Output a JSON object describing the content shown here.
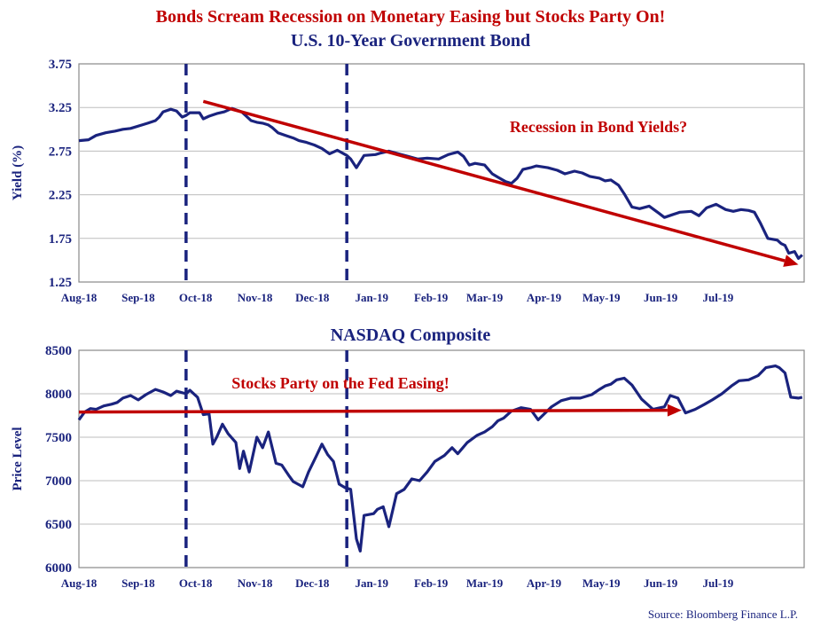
{
  "figure": {
    "title": "Bonds Scream Recession on Monetary Easing but Stocks Party On!",
    "source": "Source: Bloomberg Finance L.P.",
    "colors": {
      "title": "#c00000",
      "text": "#1a237e",
      "series": "#1a237e",
      "trend": "#c00000",
      "grid": "#bdbdbd"
    }
  },
  "chart_data": [
    {
      "type": "line",
      "title": "U.S. 10-Year Government Bond",
      "xlabel": "",
      "ylabel": "Yield (%)",
      "ylim": [
        1.25,
        3.75
      ],
      "yticks": [
        "3.75",
        "3.25",
        "2.75",
        "2.25",
        "1.75",
        "1.25"
      ],
      "ytick_values": [
        3.75,
        3.25,
        2.75,
        2.25,
        1.75,
        1.25
      ],
      "xlim": [
        "2018-08-01",
        "2019-08-15"
      ],
      "xticks": [
        "Aug-18",
        "Sep-18",
        "Oct-18",
        "Nov-18",
        "Dec-18",
        "Jan-19",
        "Feb-19",
        "Mar-19",
        "Apr-19",
        "May-19",
        "Jun-19",
        "Jul-19"
      ],
      "xtick_dates": [
        "2018-08-01",
        "2018-09-01",
        "2018-10-01",
        "2018-11-01",
        "2018-12-01",
        "2019-01-01",
        "2019-02-01",
        "2019-03-01",
        "2019-04-01",
        "2019-05-01",
        "2019-06-01",
        "2019-07-01"
      ],
      "grid": "horizontal",
      "vlines": [
        "2018-09-26",
        "2018-12-19"
      ],
      "trend_arrow": {
        "from": [
          "2018-10-05",
          3.32
        ],
        "to": [
          "2019-08-12",
          1.45
        ]
      },
      "annotation": "Recession in Bond Yields?",
      "x": [
        "2018-08-01",
        "2018-08-06",
        "2018-08-10",
        "2018-08-15",
        "2018-08-20",
        "2018-08-24",
        "2018-08-28",
        "2018-09-03",
        "2018-09-06",
        "2018-09-10",
        "2018-09-12",
        "2018-09-14",
        "2018-09-18",
        "2018-09-21",
        "2018-09-24",
        "2018-09-26",
        "2018-09-28",
        "2018-10-03",
        "2018-10-05",
        "2018-10-08",
        "2018-10-12",
        "2018-10-16",
        "2018-10-20",
        "2018-10-25",
        "2018-10-30",
        "2018-11-02",
        "2018-11-05",
        "2018-11-08",
        "2018-11-10",
        "2018-11-13",
        "2018-11-17",
        "2018-11-21",
        "2018-11-24",
        "2018-11-28",
        "2018-12-02",
        "2018-12-06",
        "2018-12-10",
        "2018-12-14",
        "2018-12-19",
        "2018-12-21",
        "2018-12-24",
        "2018-12-28",
        "2019-01-03",
        "2019-01-06",
        "2019-01-10",
        "2019-01-15",
        "2019-01-20",
        "2019-01-25",
        "2019-01-30",
        "2019-02-05",
        "2019-02-10",
        "2019-02-15",
        "2019-02-18",
        "2019-02-21",
        "2019-02-24",
        "2019-03-01",
        "2019-03-05",
        "2019-03-08",
        "2019-03-12",
        "2019-03-15",
        "2019-03-18",
        "2019-03-21",
        "2019-03-25",
        "2019-03-28",
        "2019-04-03",
        "2019-04-08",
        "2019-04-12",
        "2019-04-17",
        "2019-04-21",
        "2019-04-25",
        "2019-04-30",
        "2019-05-03",
        "2019-05-06",
        "2019-05-10",
        "2019-05-13",
        "2019-05-17",
        "2019-05-21",
        "2019-05-26",
        "2019-05-31",
        "2019-06-03",
        "2019-06-07",
        "2019-06-11",
        "2019-06-17",
        "2019-06-21",
        "2019-06-25",
        "2019-06-30",
        "2019-07-05",
        "2019-07-09",
        "2019-07-13",
        "2019-07-17",
        "2019-07-20",
        "2019-07-23",
        "2019-07-27",
        "2019-08-01",
        "2019-08-03",
        "2019-08-05",
        "2019-08-07",
        "2019-08-10",
        "2019-08-12",
        "2019-08-14"
      ],
      "series": [
        {
          "values": [
            2.87,
            2.88,
            2.93,
            2.96,
            2.98,
            3.0,
            3.01,
            3.05,
            3.07,
            3.1,
            3.14,
            3.2,
            3.23,
            3.21,
            3.14,
            3.16,
            3.19,
            3.19,
            3.12,
            3.15,
            3.18,
            3.2,
            3.24,
            3.2,
            3.1,
            3.08,
            3.07,
            3.05,
            3.02,
            2.96,
            2.93,
            2.9,
            2.87,
            2.85,
            2.82,
            2.78,
            2.72,
            2.76,
            2.7,
            2.66,
            2.56,
            2.7,
            2.71,
            2.73,
            2.75,
            2.72,
            2.69,
            2.66,
            2.67,
            2.66,
            2.71,
            2.74,
            2.69,
            2.59,
            2.61,
            2.59,
            2.49,
            2.45,
            2.4,
            2.38,
            2.44,
            2.54,
            2.56,
            2.58,
            2.56,
            2.53,
            2.49,
            2.52,
            2.5,
            2.46,
            2.44,
            2.41,
            2.42,
            2.36,
            2.26,
            2.11,
            2.09,
            2.12,
            2.04,
            1.99,
            2.02,
            2.05,
            2.06,
            2.01,
            2.1,
            2.14,
            2.08,
            2.06,
            2.08,
            2.07,
            2.05,
            1.93,
            1.75,
            1.73,
            1.69,
            1.67,
            1.58,
            1.6,
            1.52,
            1.56
          ]
        }
      ]
    },
    {
      "type": "line",
      "title": "NASDAQ Composite",
      "xlabel": "",
      "ylabel": "Price Level",
      "ylim": [
        6000,
        8500
      ],
      "yticks": [
        "8500",
        "8000",
        "7500",
        "7000",
        "6500",
        "6000"
      ],
      "ytick_values": [
        8500,
        8000,
        7500,
        7000,
        6500,
        6000
      ],
      "xlim": [
        "2018-08-01",
        "2019-08-15"
      ],
      "xticks": [
        "Aug-18",
        "Sep-18",
        "Oct-18",
        "Nov-18",
        "Dec-18",
        "Jan-19",
        "Feb-19",
        "Mar-19",
        "Apr-19",
        "May-19",
        "Jun-19",
        "Jul-19"
      ],
      "xtick_dates": [
        "2018-08-01",
        "2018-09-01",
        "2018-10-01",
        "2018-11-01",
        "2018-12-01",
        "2019-01-01",
        "2019-02-01",
        "2019-03-01",
        "2019-04-01",
        "2019-05-01",
        "2019-06-01",
        "2019-07-01"
      ],
      "grid": "horizontal",
      "vlines": [
        "2018-09-26",
        "2018-12-19"
      ],
      "trend_arrow": {
        "from": [
          "2018-08-01",
          7790
        ],
        "to": [
          "2019-06-12",
          7810
        ]
      },
      "annotation": "Stocks Party on the Fed Easing!",
      "x": [
        "2018-08-01",
        "2018-08-04",
        "2018-08-07",
        "2018-08-10",
        "2018-08-14",
        "2018-08-18",
        "2018-08-21",
        "2018-08-24",
        "2018-08-28",
        "2018-09-01",
        "2018-09-05",
        "2018-09-10",
        "2018-09-14",
        "2018-09-18",
        "2018-09-21",
        "2018-09-26",
        "2018-09-28",
        "2018-10-02",
        "2018-10-05",
        "2018-10-08",
        "2018-10-10",
        "2018-10-12",
        "2018-10-15",
        "2018-10-18",
        "2018-10-22",
        "2018-10-24",
        "2018-10-26",
        "2018-10-29",
        "2018-11-02",
        "2018-11-05",
        "2018-11-08",
        "2018-11-12",
        "2018-11-15",
        "2018-11-19",
        "2018-11-21",
        "2018-11-26",
        "2018-11-29",
        "2018-12-03",
        "2018-12-06",
        "2018-12-09",
        "2018-12-12",
        "2018-12-15",
        "2018-12-18",
        "2018-12-21",
        "2018-12-24",
        "2018-12-26",
        "2018-12-28",
        "2019-01-02",
        "2019-01-04",
        "2019-01-07",
        "2019-01-10",
        "2019-01-14",
        "2019-01-18",
        "2019-01-22",
        "2019-01-26",
        "2019-01-30",
        "2019-02-03",
        "2019-02-08",
        "2019-02-12",
        "2019-02-15",
        "2019-02-20",
        "2019-02-25",
        "2019-03-01",
        "2019-03-05",
        "2019-03-08",
        "2019-03-11",
        "2019-03-15",
        "2019-03-20",
        "2019-03-25",
        "2019-03-29",
        "2019-04-05",
        "2019-04-10",
        "2019-04-15",
        "2019-04-20",
        "2019-04-26",
        "2019-04-30",
        "2019-05-03",
        "2019-05-06",
        "2019-05-09",
        "2019-05-13",
        "2019-05-17",
        "2019-05-22",
        "2019-05-28",
        "2019-06-03",
        "2019-06-06",
        "2019-06-10",
        "2019-06-14",
        "2019-06-19",
        "2019-06-24",
        "2019-06-28",
        "2019-07-03",
        "2019-07-08",
        "2019-07-12",
        "2019-07-17",
        "2019-07-22",
        "2019-07-26",
        "2019-07-31",
        "2019-08-02",
        "2019-08-05",
        "2019-08-08",
        "2019-08-12",
        "2019-08-14"
      ],
      "series": [
        {
          "values": [
            7700,
            7790,
            7830,
            7820,
            7860,
            7880,
            7900,
            7950,
            7980,
            7930,
            7990,
            8050,
            8020,
            7980,
            8030,
            8000,
            8040,
            7960,
            7760,
            7770,
            7420,
            7500,
            7650,
            7540,
            7440,
            7140,
            7340,
            7100,
            7500,
            7380,
            7560,
            7200,
            7180,
            7050,
            6990,
            6930,
            7100,
            7280,
            7420,
            7300,
            7220,
            6960,
            6920,
            6900,
            6330,
            6190,
            6600,
            6620,
            6670,
            6700,
            6470,
            6850,
            6900,
            7020,
            7000,
            7100,
            7220,
            7290,
            7380,
            7310,
            7440,
            7520,
            7560,
            7620,
            7690,
            7720,
            7800,
            7840,
            7820,
            7700,
            7850,
            7920,
            7950,
            7950,
            7990,
            8050,
            8090,
            8110,
            8160,
            8180,
            8100,
            7940,
            7820,
            7850,
            7980,
            7950,
            7780,
            7820,
            7880,
            7930,
            8000,
            8090,
            8150,
            8160,
            8210,
            8300,
            8320,
            8300,
            8240,
            7960,
            7950,
            7960
          ]
        }
      ]
    }
  ]
}
